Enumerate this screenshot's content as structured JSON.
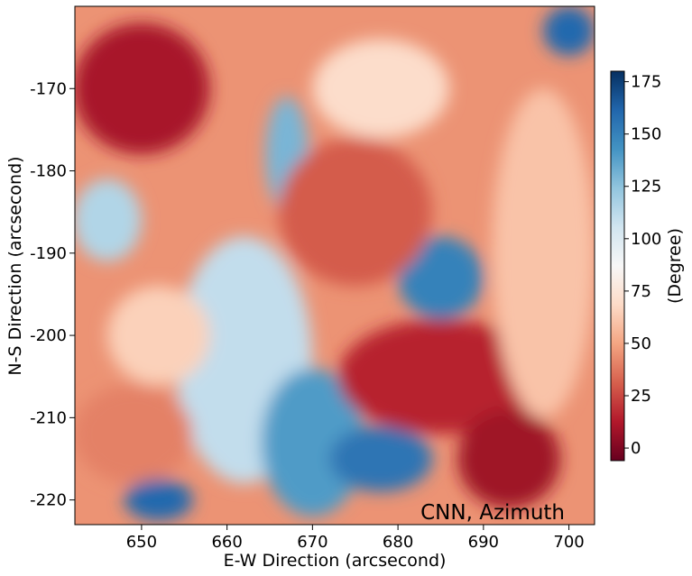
{
  "chart_data": {
    "type": "heatmap",
    "annotation": "CNN, Azimuth",
    "xlabel": "E-W Direction (arcsecond)",
    "ylabel": "N-S Direction (arcsecond)",
    "xlim": [
      642.2,
      703.0
    ],
    "ylim": [
      -223.0,
      -160.0
    ],
    "x_ticks": [
      650,
      660,
      670,
      680,
      690,
      700
    ],
    "y_ticks": [
      -170,
      -180,
      -190,
      -200,
      -210,
      -220
    ],
    "colorbar": {
      "label": "(Degree)",
      "range": [
        -6,
        180
      ],
      "ticks": [
        0,
        25,
        50,
        75,
        100,
        125,
        150,
        175
      ],
      "colormap": [
        "#67001f",
        "#b2182b",
        "#d6604d",
        "#f4a582",
        "#fddbc7",
        "#f7f7f7",
        "#d1e5f0",
        "#92c5de",
        "#4393c3",
        "#2166ac",
        "#053061"
      ]
    },
    "regions": [
      {
        "x": 662,
        "y": -203,
        "rx": 8,
        "ry": 15,
        "value": 110
      },
      {
        "x": 667,
        "y": -178,
        "rx": 2.5,
        "ry": 7,
        "value": 130
      },
      {
        "x": 670,
        "y": -213,
        "rx": 6,
        "ry": 9,
        "value": 140
      },
      {
        "x": 678,
        "y": -215,
        "rx": 6,
        "ry": 4,
        "value": 155
      },
      {
        "x": 685,
        "y": -193,
        "rx": 5,
        "ry": 5,
        "value": 150
      },
      {
        "x": 675,
        "y": -185,
        "rx": 9,
        "ry": 9,
        "value": 30
      },
      {
        "x": 685,
        "y": -205,
        "rx": 12,
        "ry": 7,
        "value": 15
      },
      {
        "x": 678,
        "y": -170,
        "rx": 8,
        "ry": 6,
        "value": 70
      },
      {
        "x": 650,
        "y": -170,
        "rx": 8,
        "ry": 8,
        "value": 10
      },
      {
        "x": 649,
        "y": -212,
        "rx": 7,
        "ry": 6,
        "value": 40
      },
      {
        "x": 652,
        "y": -220,
        "rx": 4,
        "ry": 2.5,
        "value": 160
      },
      {
        "x": 652,
        "y": -200,
        "rx": 6,
        "ry": 6,
        "value": 65
      },
      {
        "x": 646,
        "y": -186,
        "rx": 4,
        "ry": 5,
        "value": 115
      },
      {
        "x": 697,
        "y": -190,
        "rx": 6,
        "ry": 20,
        "value": 60
      },
      {
        "x": 700,
        "y": -163,
        "rx": 3,
        "ry": 3,
        "value": 160
      },
      {
        "x": 693,
        "y": -215,
        "rx": 6,
        "ry": 6,
        "value": 8
      }
    ]
  }
}
